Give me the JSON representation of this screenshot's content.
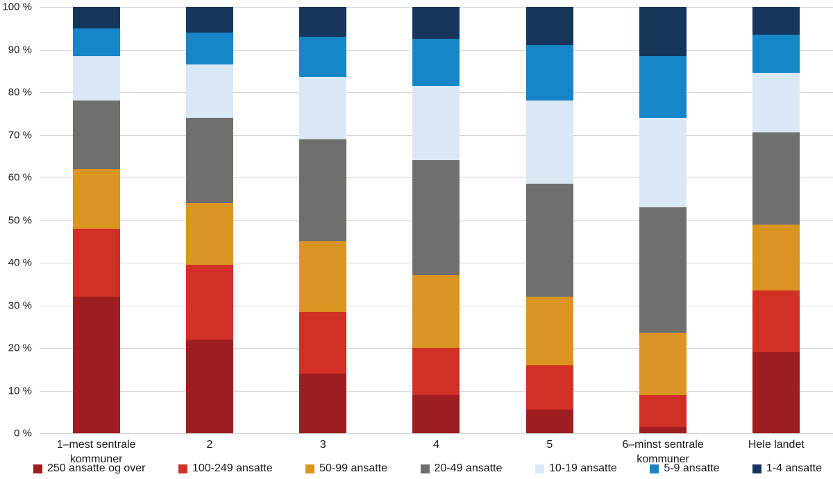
{
  "chart_data": {
    "type": "bar",
    "stacked": true,
    "percent": true,
    "title": "",
    "xlabel": "",
    "ylabel": "",
    "ylim": [
      0,
      100
    ],
    "ytick_step": 10,
    "ytick_labels": [
      "0 %",
      "10 %",
      "20 %",
      "30 %",
      "40 %",
      "50 %",
      "60 %",
      "70 %",
      "80 %",
      "90 %",
      "100 %"
    ],
    "grid": true,
    "legend_position": "bottom",
    "categories": [
      "1–mest sentrale kommuner",
      "2",
      "3",
      "4",
      "5",
      "6–minst sentrale kommuner",
      "Hele landet"
    ],
    "series": [
      {
        "name": "250 ansatte og over",
        "color": "#9d1d20",
        "values": [
          32,
          22,
          14,
          9,
          5.5,
          1.5,
          19
        ]
      },
      {
        "name": "100-249 ansatte",
        "color": "#d03026",
        "values": [
          16,
          17.5,
          14.5,
          11,
          10.5,
          7.5,
          14.5
        ]
      },
      {
        "name": "50-99 ansatte",
        "color": "#da9422",
        "values": [
          14,
          14.5,
          16.5,
          17,
          16,
          14.5,
          15.5
        ]
      },
      {
        "name": "20-49 ansatte",
        "color": "#6f6f6e",
        "values": [
          16,
          20,
          24,
          27,
          26.5,
          29.5,
          21.5
        ]
      },
      {
        "name": "10-19 ansatte",
        "color": "#dae7f5",
        "values": [
          10.5,
          12.5,
          14.5,
          17.5,
          19.5,
          21,
          14
        ]
      },
      {
        "name": "5-9 ansatte",
        "color": "#1786c8",
        "values": [
          6.5,
          7.5,
          9.5,
          11,
          13,
          14.5,
          9
        ]
      },
      {
        "name": "1-4 ansatte",
        "color": "#16365c",
        "values": [
          5,
          6,
          7,
          7.5,
          9,
          11.5,
          6.5
        ]
      }
    ]
  }
}
